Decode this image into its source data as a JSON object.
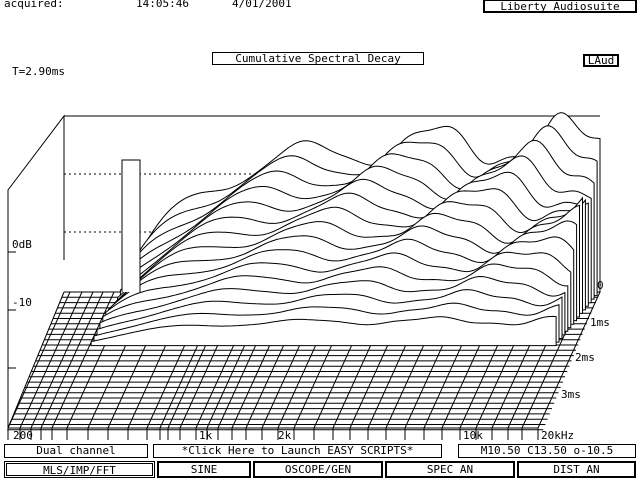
{
  "header": {
    "acquired_label": "acquired:",
    "time": "14:05:46",
    "date": "4/01/2001",
    "app_title": "Liberty Audiosuite"
  },
  "plot": {
    "title": "Cumulative Spectral Decay",
    "badge": "LAud",
    "time_readout": "T=2.90ms",
    "z_labels": [
      "0dB",
      "-10"
    ],
    "time_labels": [
      "0",
      "1ms",
      "2ms",
      "3ms"
    ],
    "freq_labels": [
      "200",
      "1k",
      "2k",
      "10k",
      "20kHz"
    ],
    "line_color": "#000000",
    "background": "#ffffff"
  },
  "status": {
    "mode": "Dual channel",
    "scripts_link": "*Click Here to Launch EASY SCRIPTS*",
    "markers": "M10.50 C13.50 o-10.5"
  },
  "menu": {
    "buttons": [
      {
        "label": "MLS/IMP/FFT",
        "active": true
      },
      {
        "label": "SINE",
        "active": false
      },
      {
        "label": "OSCOPE/GEN",
        "active": false
      },
      {
        "label": "SPEC AN",
        "active": false
      },
      {
        "label": "DIST AN",
        "active": false
      }
    ]
  }
}
